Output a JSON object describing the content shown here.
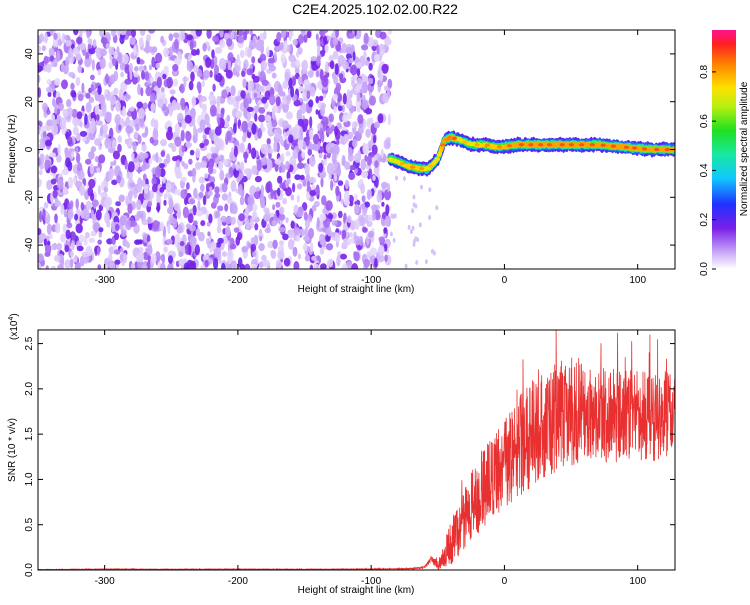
{
  "chart_data": [
    {
      "type": "heatmap",
      "title": "C2E4.2025.102.02.00.R22",
      "xlabel": "Height of straight line (km)",
      "ylabel": "Frequency (Hz)",
      "xlim": [
        -350,
        128
      ],
      "ylim": [
        -50,
        50
      ],
      "x_ticks": [
        "-300",
        "-200",
        "-100",
        "0",
        "100"
      ],
      "x_tick_values": [
        -300,
        -200,
        -100,
        0,
        100
      ],
      "y_ticks": [
        "-40",
        "-20",
        "0",
        "20",
        "40"
      ],
      "y_tick_values": [
        -40,
        -20,
        0,
        20,
        40
      ],
      "colorbar": {
        "label": "Normalized spectral amplitude",
        "range": [
          0,
          0.97
        ],
        "ticks": [
          "0.0",
          "0.2",
          "0.4",
          "0.6",
          "0.8"
        ],
        "tick_values": [
          0,
          0.2,
          0.4,
          0.6,
          0.8
        ]
      },
      "noise_region": {
        "x_range": [
          -350,
          -86
        ],
        "y_range": [
          -50,
          50
        ],
        "amplitude_range": [
          0.02,
          0.15
        ]
      },
      "signal_ridge": [
        {
          "x": -86,
          "y": -4,
          "amplitude": 0.75
        },
        {
          "x": -80,
          "y": -5,
          "amplitude": 0.8
        },
        {
          "x": -72,
          "y": -7,
          "amplitude": 0.85
        },
        {
          "x": -64,
          "y": -8,
          "amplitude": 0.85
        },
        {
          "x": -57,
          "y": -8,
          "amplitude": 0.8
        },
        {
          "x": -50,
          "y": -4,
          "amplitude": 0.8
        },
        {
          "x": -45,
          "y": 4,
          "amplitude": 0.9
        },
        {
          "x": -40,
          "y": 5,
          "amplitude": 0.95
        },
        {
          "x": -33,
          "y": 4,
          "amplitude": 0.8
        },
        {
          "x": -25,
          "y": 2,
          "amplitude": 0.8
        },
        {
          "x": -15,
          "y": 2,
          "amplitude": 0.85
        },
        {
          "x": -5,
          "y": 1,
          "amplitude": 0.85
        },
        {
          "x": 10,
          "y": 2,
          "amplitude": 0.9
        },
        {
          "x": 30,
          "y": 2,
          "amplitude": 0.9
        },
        {
          "x": 50,
          "y": 2,
          "amplitude": 0.9
        },
        {
          "x": 70,
          "y": 2,
          "amplitude": 0.9
        },
        {
          "x": 90,
          "y": 1,
          "amplitude": 0.9
        },
        {
          "x": 110,
          "y": 0,
          "amplitude": 0.9
        },
        {
          "x": 128,
          "y": 0,
          "amplitude": 0.9
        }
      ]
    },
    {
      "type": "line",
      "xlabel": "Height of straight line (km)",
      "ylabel": "SNR (10 * v/v)",
      "scale_label": "(x10",
      "scale_exponent": "4",
      "xlim": [
        -350,
        128
      ],
      "ylim": [
        0,
        2.65
      ],
      "x_ticks": [
        "-300",
        "-200",
        "-100",
        "0",
        "100"
      ],
      "x_tick_values": [
        -300,
        -200,
        -100,
        0,
        100
      ],
      "y_ticks": [
        "0.0",
        "0.5",
        "1.0",
        "1.5",
        "2.0",
        "2.5"
      ],
      "y_tick_values": [
        0,
        0.5,
        1.0,
        1.5,
        2.0,
        2.5
      ],
      "line_color": "#e83030",
      "series": [
        {
          "x": [
            -350,
            -300,
            -250,
            -200,
            -150,
            -100,
            -70,
            -60,
            -55,
            -50,
            -40,
            -30,
            -20,
            -10,
            0,
            10,
            20,
            30,
            40,
            50,
            60,
            70,
            80,
            90,
            100,
            110,
            128
          ],
          "values": [
            0.005,
            0.01,
            0.008,
            0.01,
            0.008,
            0.01,
            0.015,
            0.03,
            0.12,
            0.05,
            0.3,
            0.55,
            0.8,
            1.0,
            1.15,
            1.35,
            1.5,
            1.6,
            1.7,
            1.75,
            1.75,
            1.75,
            1.7,
            1.7,
            1.7,
            1.7,
            1.7
          ],
          "spread": [
            0.002,
            0.003,
            0.003,
            0.003,
            0.003,
            0.004,
            0.005,
            0.01,
            0.04,
            0.05,
            0.25,
            0.35,
            0.45,
            0.5,
            0.5,
            0.55,
            0.6,
            0.6,
            0.6,
            0.6,
            0.6,
            0.55,
            0.55,
            0.5,
            0.5,
            0.5,
            0.5
          ]
        }
      ]
    }
  ]
}
